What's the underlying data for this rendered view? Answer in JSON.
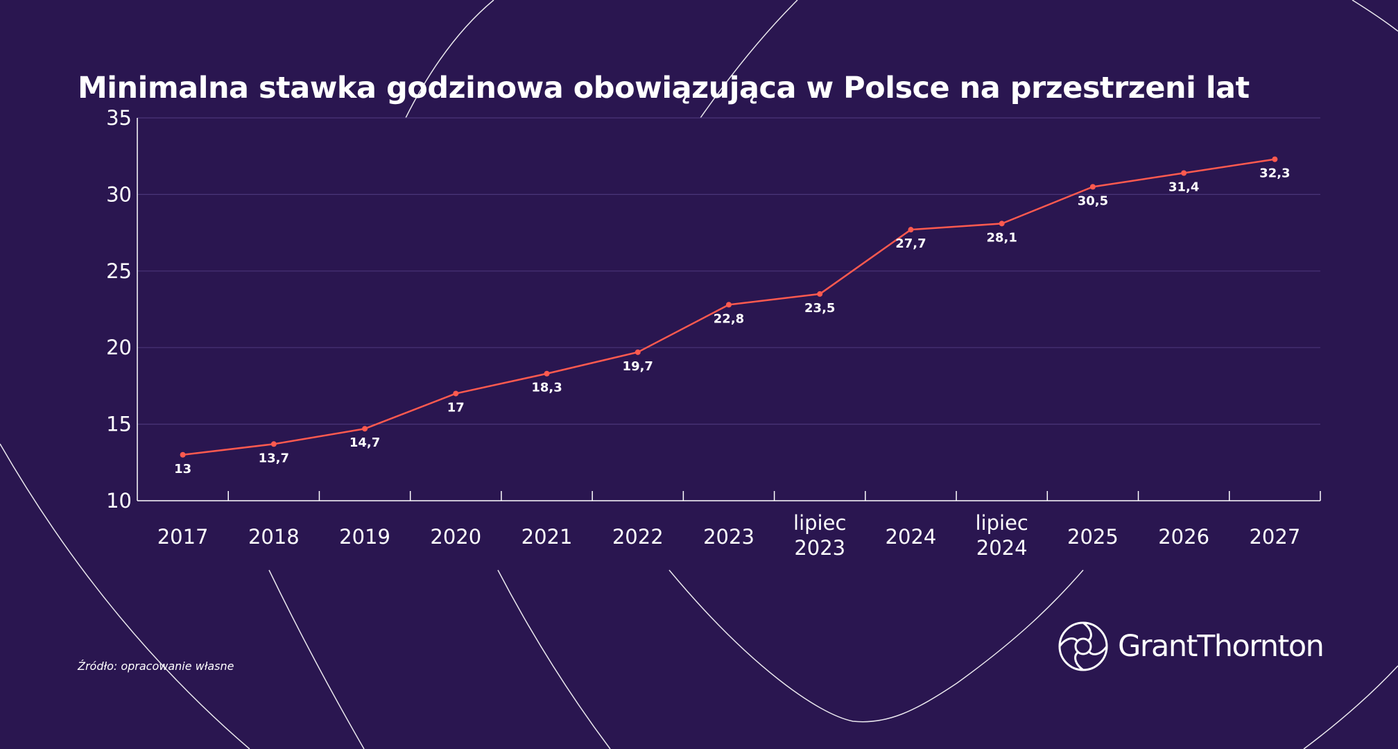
{
  "title": "Minimalna stawka godzinowa obowiązująca w Polsce na przestrzeni lat",
  "source": "Źródło: opracowanie własne",
  "logo_text": "GrantThornton",
  "colors": {
    "background": "#2a1650",
    "line": "#ff5a4f",
    "grid": "#4a3578",
    "text": "#ffffff"
  },
  "chart_data": {
    "type": "line",
    "title": "Minimalna stawka godzinowa obowiązująca w Polsce na przestrzeni lat",
    "xlabel": "",
    "ylabel": "",
    "categories": [
      "2017",
      "2018",
      "2019",
      "2020",
      "2021",
      "2022",
      "2023",
      "lipiec 2023",
      "2024",
      "lipiec 2024",
      "2025",
      "2026",
      "2027"
    ],
    "values": [
      13,
      13.7,
      14.7,
      17,
      18.3,
      19.7,
      22.8,
      23.5,
      27.7,
      28.1,
      30.5,
      31.4,
      32.3
    ],
    "value_labels": [
      "13",
      "13,7",
      "14,7",
      "17",
      "18,3",
      "19,7",
      "22,8",
      "23,5",
      "27,7",
      "28,1",
      "30,5",
      "31,4",
      "32,3"
    ],
    "yticks": [
      10,
      15,
      20,
      25,
      30,
      35
    ],
    "ylim": [
      10,
      35
    ],
    "grid": "horizontal",
    "legend": "none"
  }
}
